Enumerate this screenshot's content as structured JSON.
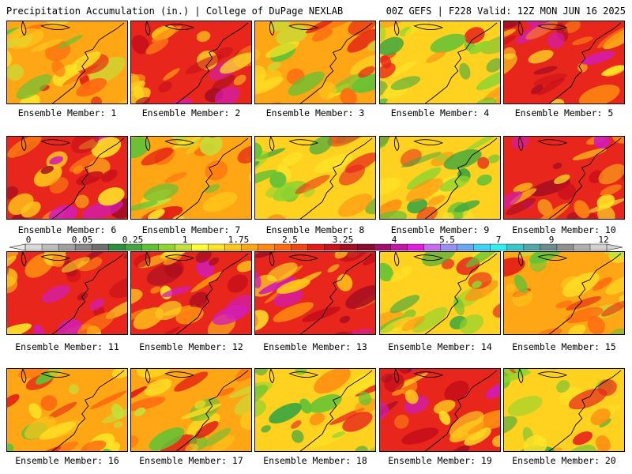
{
  "header": {
    "title_left": "Precipitation Accumulation (in.) | College of DuPage NEXLAB",
    "title_right": "00Z GEFS | F228 Valid: 12Z MON JUN 16 2025"
  },
  "panels": [
    {
      "label": "Ensemble Member: 1",
      "palette": "orange"
    },
    {
      "label": "Ensemble Member: 2",
      "palette": "red"
    },
    {
      "label": "Ensemble Member: 3",
      "palette": "orange"
    },
    {
      "label": "Ensemble Member: 4",
      "palette": "green"
    },
    {
      "label": "Ensemble Member: 5",
      "palette": "red"
    },
    {
      "label": "Ensemble Member: 6",
      "palette": "red"
    },
    {
      "label": "Ensemble Member: 7",
      "palette": "orange"
    },
    {
      "label": "Ensemble Member: 8",
      "palette": "green"
    },
    {
      "label": "Ensemble Member: 9",
      "palette": "green"
    },
    {
      "label": "Ensemble Member: 10",
      "palette": "red"
    },
    {
      "label": "Ensemble Member: 11",
      "palette": "red"
    },
    {
      "label": "Ensemble Member: 12",
      "palette": "red"
    },
    {
      "label": "Ensemble Member: 13",
      "palette": "red"
    },
    {
      "label": "Ensemble Member: 14",
      "palette": "green"
    },
    {
      "label": "Ensemble Member: 15",
      "palette": "orange"
    },
    {
      "label": "Ensemble Member: 16",
      "palette": "orange"
    },
    {
      "label": "Ensemble Member: 17",
      "palette": "orange"
    },
    {
      "label": "Ensemble Member: 18",
      "palette": "green"
    },
    {
      "label": "Ensemble Member: 19",
      "palette": "red"
    },
    {
      "label": "Ensemble Member: 20",
      "palette": "green"
    }
  ],
  "colorbar": {
    "tick_labels": [
      "0",
      "0.05",
      "0.25",
      "1",
      "1.75",
      "2.5",
      "3.25",
      "4",
      "5.5",
      "7",
      "9",
      "12"
    ],
    "colors": [
      "#d9d9d9",
      "#bdbdbd",
      "#a0a0a0",
      "#888888",
      "#707070",
      "#2d8f3a",
      "#41a83f",
      "#62c236",
      "#8fd42f",
      "#c2e23a",
      "#ffff33",
      "#ffe326",
      "#ffc61a",
      "#ffa614",
      "#ff8a12",
      "#ff6a10",
      "#f24612",
      "#e21c14",
      "#c8101a",
      "#a50e22",
      "#8c0a2c",
      "#a0106b",
      "#c316a8",
      "#e21ee0",
      "#c86af0",
      "#9a90f2",
      "#6aa8f5",
      "#40d2f5",
      "#30f0f0",
      "#38c8c8",
      "#50a8a8",
      "#6a8c8c",
      "#909090",
      "#b0b0b0",
      "#d0d0d0"
    ]
  }
}
